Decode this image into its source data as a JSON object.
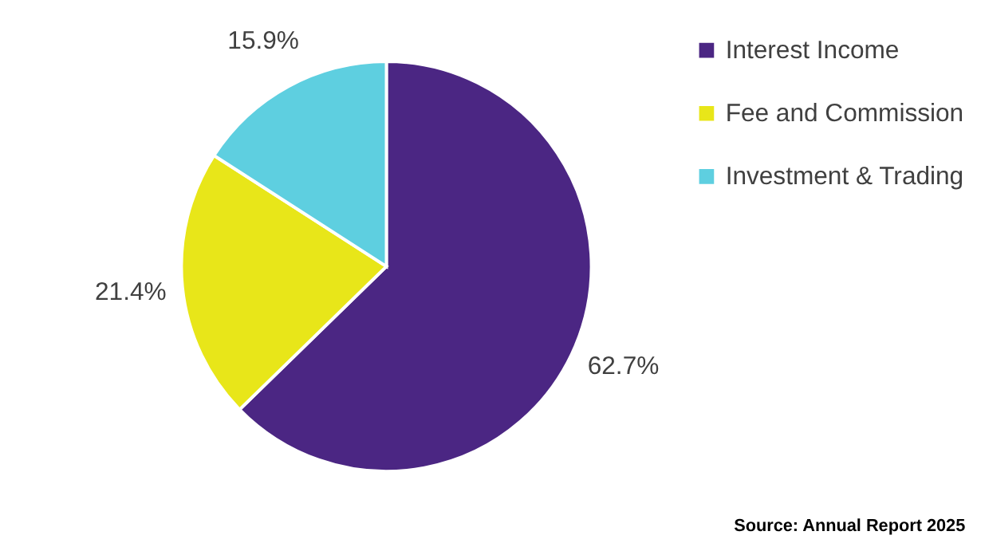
{
  "chart_data": {
    "type": "pie",
    "categories": [
      "Interest Income",
      "Fee and Commission",
      "Investment & Trading"
    ],
    "values": [
      62.7,
      21.4,
      15.9
    ],
    "colors": [
      "#4b2683",
      "#e8e619",
      "#5ecfe0"
    ],
    "value_labels": [
      "62.7%",
      "21.4%",
      "15.9%"
    ],
    "legend": "right",
    "annotations": [
      "Source: Annual Report 2025"
    ]
  }
}
